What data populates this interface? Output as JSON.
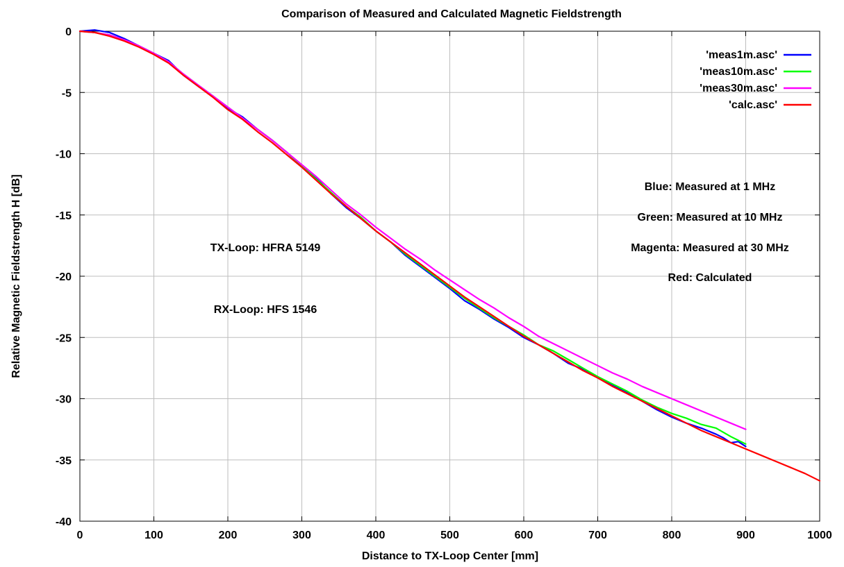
{
  "chart_data": {
    "type": "line",
    "title": "Comparison of Measured and Calculated Magnetic Fieldstrength",
    "xlabel": "Distance to TX-Loop Center [mm]",
    "ylabel": "Relative Magnetic Fieldstrength H [dB]",
    "xlim": [
      0,
      1000
    ],
    "ylim": [
      -40,
      0
    ],
    "xticks": [
      0,
      100,
      200,
      300,
      400,
      500,
      600,
      700,
      800,
      900,
      1000
    ],
    "yticks": [
      0,
      -5,
      -10,
      -15,
      -20,
      -25,
      -30,
      -35,
      -40
    ],
    "grid": true,
    "legend_position": "top-right",
    "series": [
      {
        "name": "'meas1m.asc'",
        "color": "#0000ff",
        "x": [
          0,
          20,
          40,
          60,
          80,
          100,
          120,
          140,
          160,
          180,
          200,
          220,
          240,
          260,
          280,
          300,
          320,
          340,
          360,
          380,
          400,
          420,
          440,
          460,
          480,
          500,
          520,
          540,
          560,
          580,
          600,
          620,
          640,
          660,
          680,
          700,
          720,
          740,
          760,
          780,
          800,
          820,
          840,
          860,
          870,
          880,
          890,
          900
        ],
        "y": [
          0,
          0.1,
          -0.1,
          -0.6,
          -1.2,
          -1.8,
          -2.4,
          -3.6,
          -4.5,
          -5.3,
          -6.3,
          -7.0,
          -8.0,
          -8.9,
          -9.9,
          -11.0,
          -12.0,
          -13.3,
          -14.4,
          -15.3,
          -16.3,
          -17.2,
          -18.3,
          -19.2,
          -20.1,
          -21.0,
          -22.0,
          -22.7,
          -23.5,
          -24.2,
          -25.0,
          -25.6,
          -26.3,
          -27.1,
          -27.6,
          -28.3,
          -28.9,
          -29.5,
          -30.2,
          -30.9,
          -31.5,
          -32.0,
          -32.4,
          -32.9,
          -33.2,
          -33.6,
          -33.5,
          -33.9
        ]
      },
      {
        "name": "'meas10m.asc'",
        "color": "#00ff00",
        "x": [
          0,
          20,
          40,
          60,
          80,
          100,
          120,
          140,
          160,
          180,
          200,
          220,
          240,
          260,
          280,
          300,
          320,
          340,
          360,
          380,
          400,
          420,
          440,
          460,
          480,
          500,
          520,
          540,
          560,
          580,
          600,
          620,
          640,
          660,
          680,
          700,
          720,
          740,
          760,
          780,
          800,
          820,
          840,
          860,
          880,
          900
        ],
        "y": [
          0,
          -0.1,
          -0.3,
          -0.7,
          -1.2,
          -1.8,
          -2.5,
          -3.5,
          -4.4,
          -5.3,
          -6.2,
          -7.1,
          -8.0,
          -8.9,
          -9.9,
          -11.0,
          -12.1,
          -13.2,
          -14.3,
          -15.2,
          -16.3,
          -17.2,
          -18.2,
          -19.1,
          -20.0,
          -20.9,
          -21.8,
          -22.6,
          -23.4,
          -24.1,
          -24.8,
          -25.6,
          -26.1,
          -26.8,
          -27.5,
          -28.2,
          -28.8,
          -29.4,
          -30.1,
          -30.7,
          -31.2,
          -31.6,
          -32.1,
          -32.4,
          -33.1,
          -33.7
        ]
      },
      {
        "name": "'meas30m.asc'",
        "color": "#ff00ff",
        "x": [
          0,
          20,
          40,
          60,
          80,
          100,
          120,
          140,
          160,
          180,
          200,
          220,
          240,
          260,
          280,
          300,
          320,
          340,
          360,
          380,
          400,
          420,
          440,
          460,
          480,
          500,
          520,
          540,
          560,
          580,
          600,
          620,
          640,
          660,
          680,
          700,
          720,
          740,
          760,
          780,
          800,
          820,
          840,
          860,
          880,
          900
        ],
        "y": [
          0,
          -0.1,
          -0.3,
          -0.7,
          -1.2,
          -1.8,
          -2.5,
          -3.5,
          -4.4,
          -5.3,
          -6.2,
          -7.1,
          -8.0,
          -8.9,
          -9.9,
          -10.9,
          -11.9,
          -13.0,
          -14.1,
          -15.0,
          -16.0,
          -16.9,
          -17.8,
          -18.6,
          -19.5,
          -20.3,
          -21.1,
          -21.9,
          -22.6,
          -23.4,
          -24.1,
          -24.9,
          -25.5,
          -26.1,
          -26.7,
          -27.3,
          -27.9,
          -28.4,
          -29.0,
          -29.5,
          -30.0,
          -30.5,
          -31.0,
          -31.5,
          -32.0,
          -32.5
        ]
      },
      {
        "name": "'calc.asc'",
        "color": "#ff0000",
        "x": [
          0,
          20,
          40,
          60,
          80,
          100,
          120,
          140,
          160,
          180,
          200,
          220,
          240,
          260,
          280,
          300,
          320,
          340,
          360,
          380,
          400,
          420,
          440,
          460,
          480,
          500,
          520,
          540,
          560,
          580,
          600,
          620,
          640,
          660,
          680,
          700,
          720,
          740,
          760,
          780,
          800,
          820,
          840,
          860,
          880,
          900,
          920,
          940,
          960,
          980,
          1000
        ],
        "y": [
          0,
          -0.1,
          -0.4,
          -0.8,
          -1.3,
          -1.9,
          -2.6,
          -3.6,
          -4.5,
          -5.4,
          -6.4,
          -7.2,
          -8.2,
          -9.1,
          -10.1,
          -11.1,
          -12.2,
          -13.3,
          -14.3,
          -15.3,
          -16.3,
          -17.2,
          -18.1,
          -19.0,
          -19.9,
          -20.8,
          -21.7,
          -22.5,
          -23.3,
          -24.1,
          -24.9,
          -25.6,
          -26.3,
          -27.0,
          -27.7,
          -28.3,
          -29.0,
          -29.6,
          -30.2,
          -30.8,
          -31.4,
          -32.0,
          -32.6,
          -33.1,
          -33.6,
          -34.1,
          -34.6,
          -35.1,
          -35.6,
          -36.1,
          -36.7
        ]
      }
    ],
    "annotations": {
      "tx_loop": "TX-Loop: HFRA 5149",
      "rx_loop": "RX-Loop: HFS 1546",
      "blue_note": "Blue: Measured at 1 MHz",
      "green_note": "Green: Measured at 10 MHz",
      "magenta_note": "Magenta: Measured at 30 MHz",
      "red_note": "Red: Calculated"
    }
  }
}
